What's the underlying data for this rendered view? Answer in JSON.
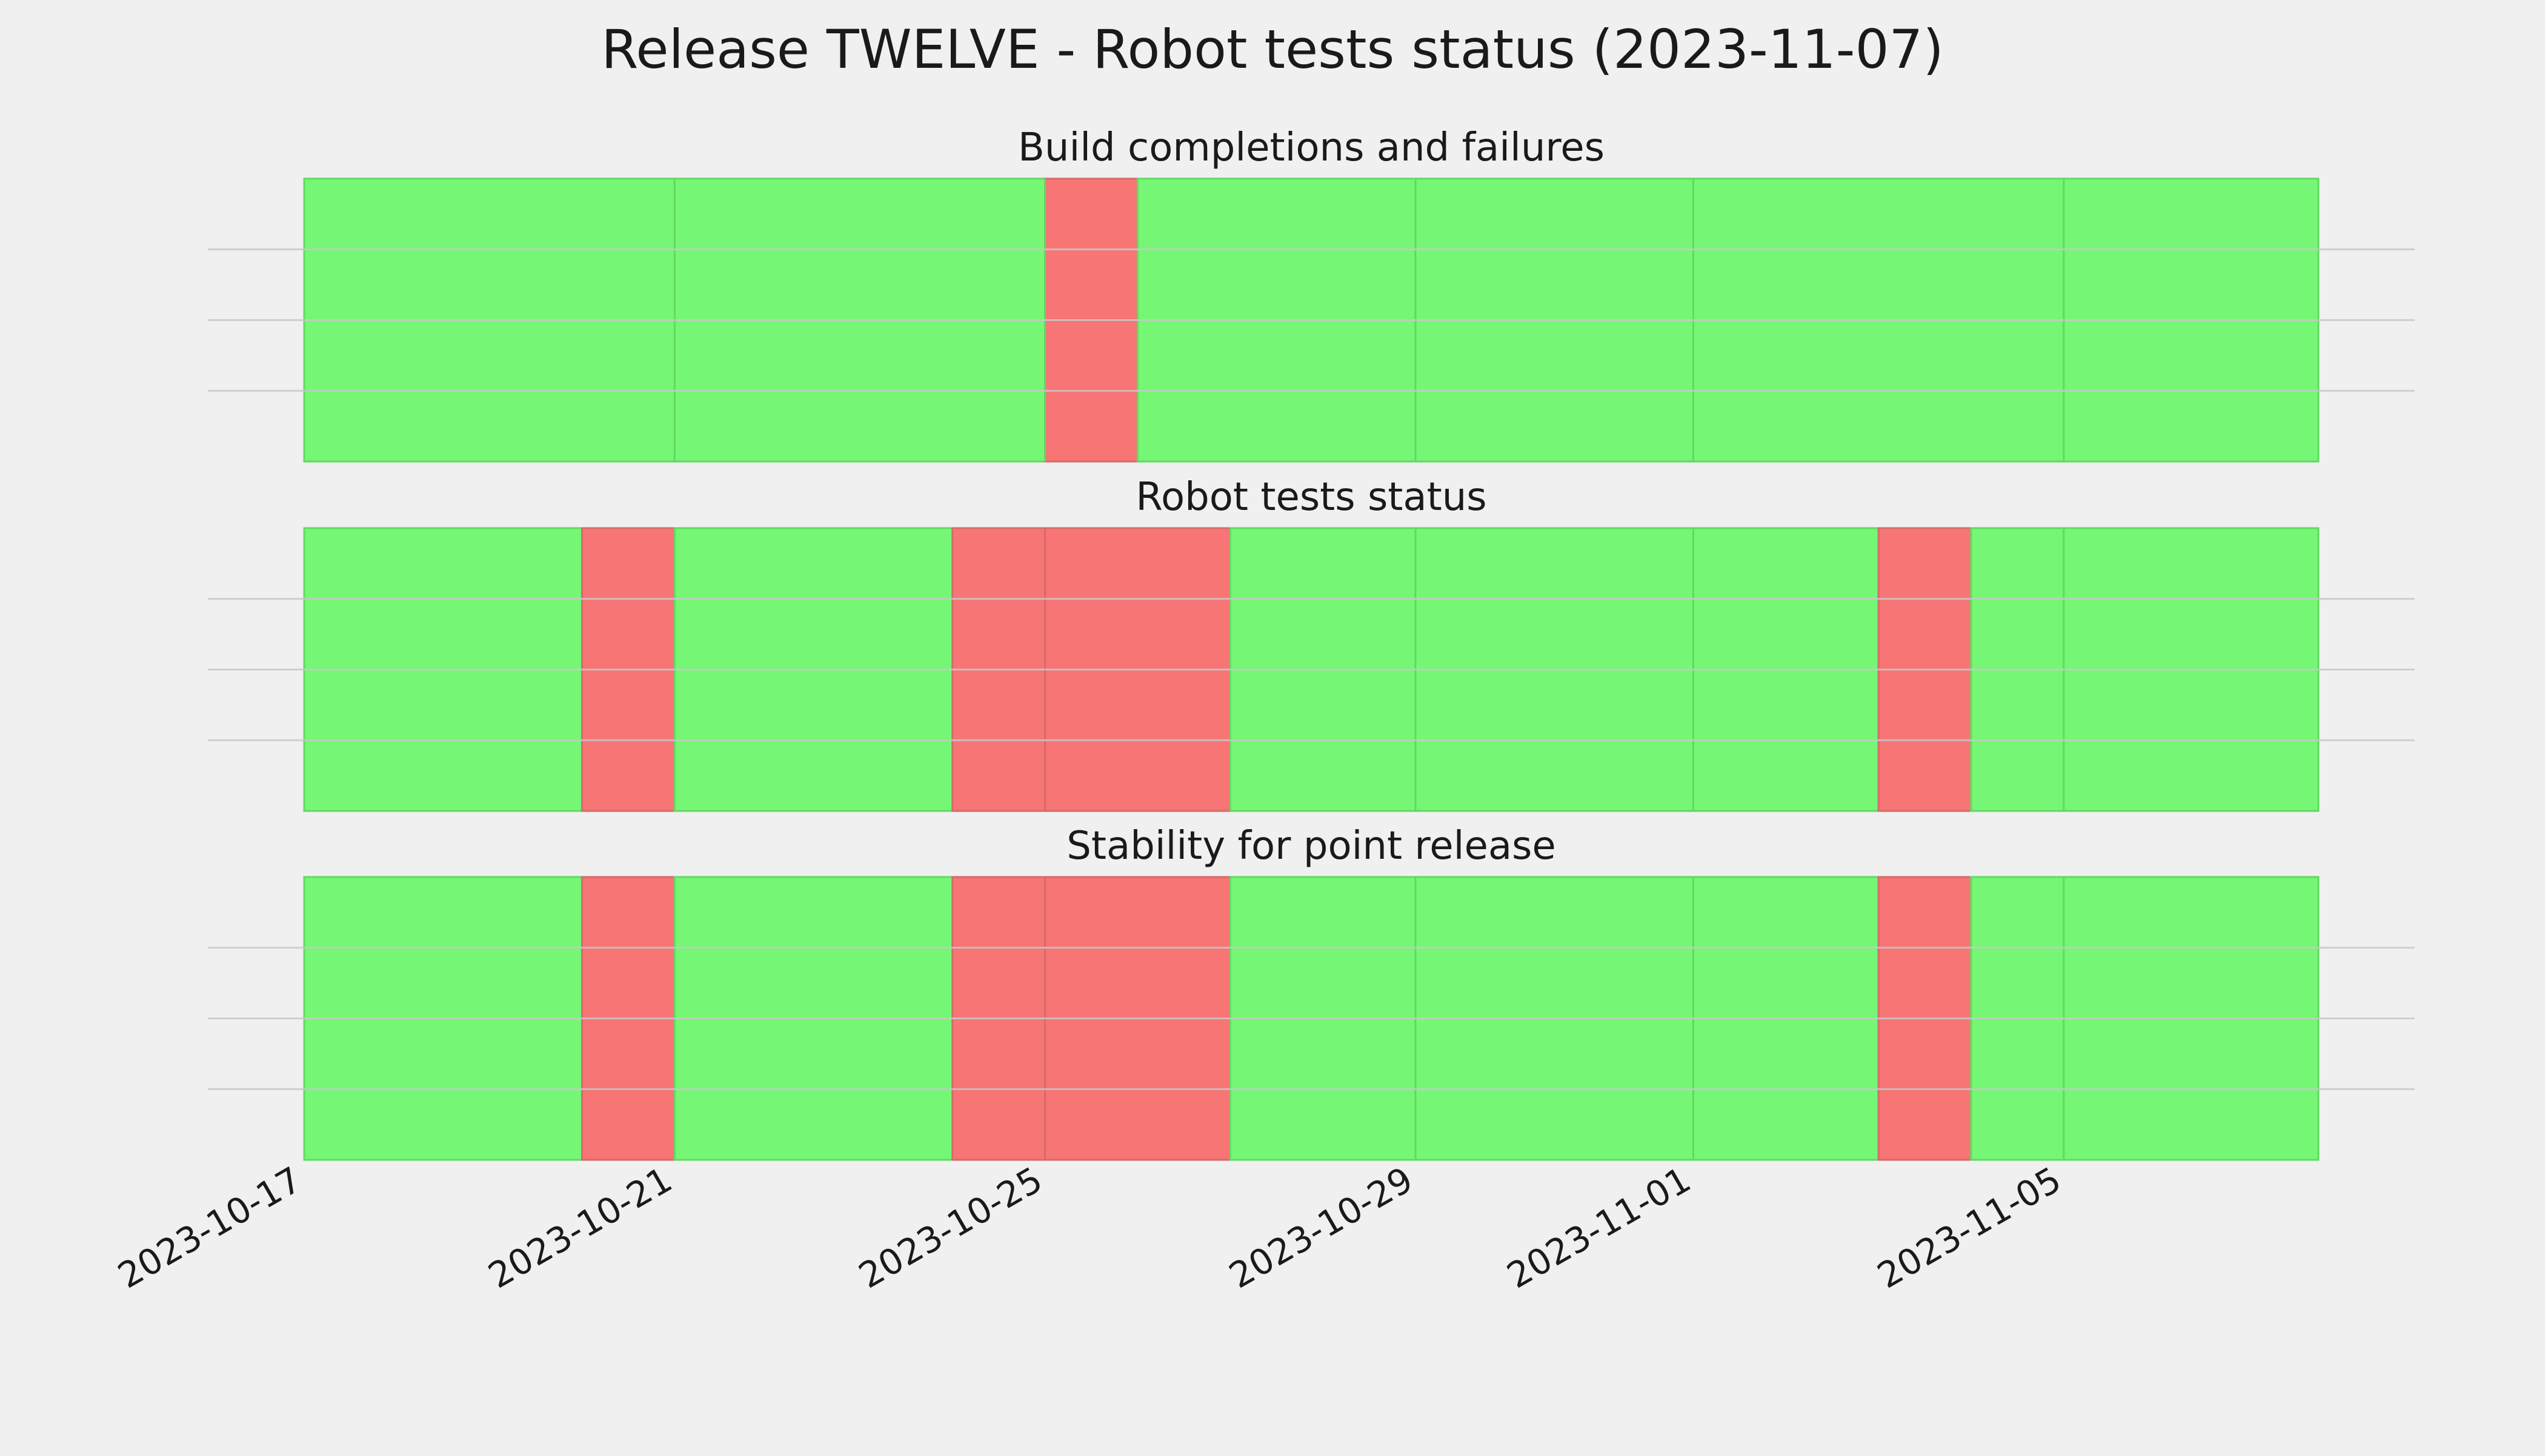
{
  "title": "Release TWELVE - Robot tests status (2023-11-07)",
  "colors": {
    "background": "#f0f0f0",
    "pass": "#75f775",
    "fail": "#f77575",
    "grid": "#c8c8c8",
    "pass_vline": "#62d862",
    "fail_vline": "#d66a6a"
  },
  "chart_data": {
    "type": "timeline",
    "x_axis": {
      "type": "date",
      "range": [
        "2023-10-17",
        "2023-11-07T18:00"
      ],
      "ticks": [
        "2023-10-17",
        "2023-10-21",
        "2023-10-25",
        "2023-10-29",
        "2023-11-01",
        "2023-11-05"
      ],
      "tick_rotation": 30
    },
    "grid": true,
    "panels": [
      {
        "title": "Build completions and failures",
        "segments": [
          {
            "start": "2023-10-17",
            "end": "2023-10-25",
            "status": "pass"
          },
          {
            "start": "2023-10-25",
            "end": "2023-10-26",
            "status": "fail"
          },
          {
            "start": "2023-10-26",
            "end": "2023-11-07T18:00",
            "status": "pass"
          }
        ]
      },
      {
        "title": "Robot tests status",
        "segments": [
          {
            "start": "2023-10-17",
            "end": "2023-10-20",
            "status": "pass"
          },
          {
            "start": "2023-10-20",
            "end": "2023-10-21",
            "status": "fail"
          },
          {
            "start": "2023-10-21",
            "end": "2023-10-24",
            "status": "pass"
          },
          {
            "start": "2023-10-24",
            "end": "2023-10-27",
            "status": "fail"
          },
          {
            "start": "2023-10-27",
            "end": "2023-11-03",
            "status": "pass"
          },
          {
            "start": "2023-11-03",
            "end": "2023-11-04",
            "status": "fail"
          },
          {
            "start": "2023-11-04",
            "end": "2023-11-07T18:00",
            "status": "pass"
          }
        ]
      },
      {
        "title": "Stability for point release",
        "segments": [
          {
            "start": "2023-10-17",
            "end": "2023-10-20",
            "status": "pass"
          },
          {
            "start": "2023-10-20",
            "end": "2023-10-21",
            "status": "fail"
          },
          {
            "start": "2023-10-21",
            "end": "2023-10-24",
            "status": "pass"
          },
          {
            "start": "2023-10-24",
            "end": "2023-10-27",
            "status": "fail"
          },
          {
            "start": "2023-10-27",
            "end": "2023-11-03",
            "status": "pass"
          },
          {
            "start": "2023-11-03",
            "end": "2023-11-04",
            "status": "fail"
          },
          {
            "start": "2023-11-04",
            "end": "2023-11-07T18:00",
            "status": "pass"
          }
        ]
      }
    ]
  }
}
